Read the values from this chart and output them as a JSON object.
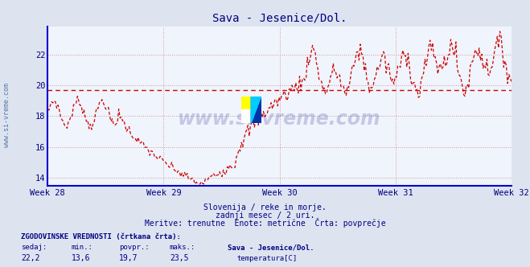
{
  "title": "Sava - Jesenice/Dol.",
  "title_color": "#000080",
  "bg_color": "#dde4f0",
  "plot_bg_color": "#f0f4fc",
  "line_color": "#cc0000",
  "avg_line_color": "#cc0000",
  "avg_value": 19.7,
  "ylim": [
    13.5,
    23.8
  ],
  "yticks": [
    14,
    16,
    18,
    20,
    22
  ],
  "tick_color": "#000080",
  "grid_color": "#cc9999",
  "xtick_labels": [
    "Week 28",
    "Week 29",
    "Week 30",
    "Week 31",
    "Week 32"
  ],
  "num_points": 360,
  "subtitle1": "Slovenija / reke in morje.",
  "subtitle2": "zadnji mesec / 2 uri.",
  "subtitle3": "Meritve: trenutne  Enote: metrične  Črta: povprečje",
  "subtitle_color": "#000080",
  "footer_label": "ZGODOVINSKE VREDNOSTI (črtkana črta):",
  "footer_color": "#000080",
  "row1_labels": [
    "sedaj:",
    "min.:",
    "povpr.:",
    "maks.:",
    "Sava - Jesenice/Dol."
  ],
  "row2_values": [
    "22,2",
    "13,6",
    "19,7",
    "23,5"
  ],
  "row2_unit": "temperatura[C]",
  "watermark_text": "www.si-vreme.com",
  "watermark_color": "#000080",
  "watermark_alpha": 0.18,
  "axis_color": "#0000cc",
  "ytext": "www.si-vreme.com",
  "ytext_color": "#4060a0"
}
